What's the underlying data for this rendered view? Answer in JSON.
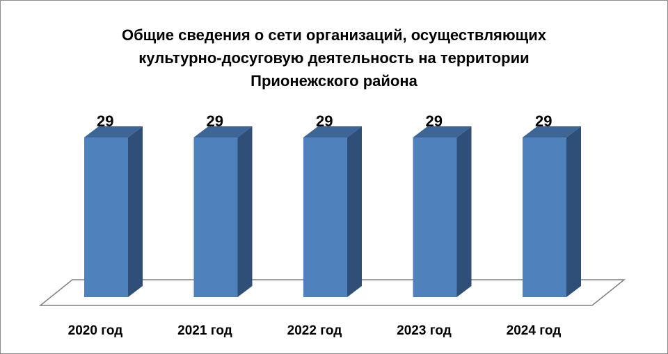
{
  "chart_data": {
    "type": "bar",
    "title_lines": [
      "Общие сведения о сети организаций, осуществляющих",
      "культурно-досуговую  деятельность на территории",
      "Прионежского района"
    ],
    "categories": [
      "2020 год",
      "2021 год",
      "2022 год",
      "2023 год",
      "2024 год"
    ],
    "values": [
      29,
      29,
      29,
      29,
      29
    ],
    "bar_color": "#4f81bd",
    "bar_side_color": "#2f4f78",
    "bar_top_color": "#3d6596",
    "three_d": true,
    "grid": false,
    "legend": "none"
  }
}
